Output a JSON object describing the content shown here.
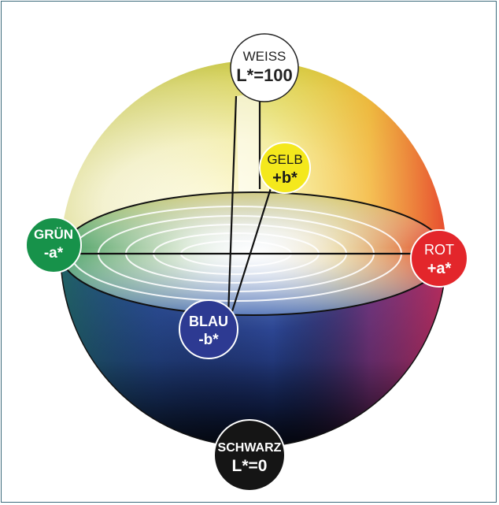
{
  "nodes": {
    "white": {
      "name": "WEISS",
      "value": "L*=100",
      "color": "#ffffff",
      "text_color": "#222222"
    },
    "yellow": {
      "name": "GELB",
      "value": "+b*",
      "color": "#f4e81c",
      "text_color": "#1a1a1a"
    },
    "green": {
      "name": "GRÜN",
      "value": "-a*",
      "color": "#17924a",
      "text_color": "#ffffff"
    },
    "red": {
      "name": "ROT",
      "value": "+a*",
      "color": "#e3262b",
      "text_color": "#ffffff"
    },
    "blue": {
      "name": "BLAU",
      "value": "-b*",
      "color": "#2d3a92",
      "text_color": "#ffffff"
    },
    "black": {
      "name": "SCHWARZ",
      "value": "L*=0",
      "color": "#151515",
      "text_color": "#ffffff"
    }
  },
  "colors": {
    "frame_border": "#3d6b7c",
    "sphere_dark_blue": "#1c2f72",
    "equator_bright": "#ffffff"
  }
}
